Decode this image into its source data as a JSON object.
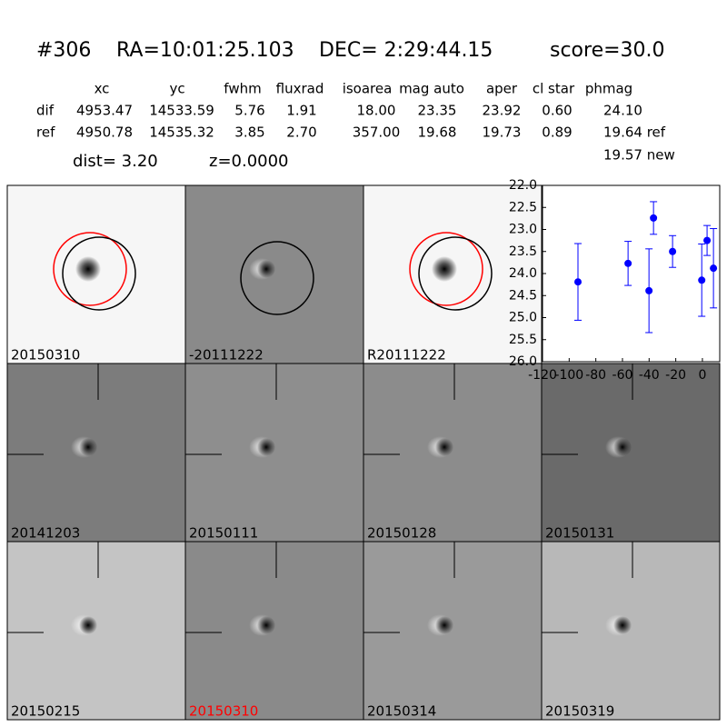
{
  "header": {
    "object": "#306",
    "ra": "RA=10:01:25.103",
    "dec": "DEC= 2:29:44.15",
    "score": "score=30.0"
  },
  "table": {
    "columns": [
      "xc",
      "yc",
      "fwhm",
      "fluxrad",
      "isoarea",
      "mag auto",
      "aper",
      "cl star",
      "phmag"
    ],
    "rows": [
      [
        "dif",
        "4953.47",
        "14533.59",
        "5.76",
        "1.91",
        "18.00",
        "23.35",
        "23.92",
        "0.60",
        "24.10"
      ],
      [
        "ref",
        "4950.78",
        "14535.32",
        "3.85",
        "2.70",
        "357.00",
        "19.68",
        "19.73",
        "0.89",
        "19.64 ref"
      ]
    ],
    "extra": "19.57 new",
    "dist": "dist=  3.20",
    "z": "z=0.0000"
  },
  "stamps": [
    {
      "label": "20150310"
    },
    {
      "label": "-20111222"
    },
    {
      "label": "R20111222"
    },
    {
      "label": "20141203"
    },
    {
      "label": "20150111"
    },
    {
      "label": "20150128"
    },
    {
      "label": "20150131"
    },
    {
      "label": "20150215"
    },
    {
      "label": "20150310",
      "color": "#ff0000"
    },
    {
      "label": "20150314"
    },
    {
      "label": "20150319"
    }
  ],
  "chart_data": {
    "type": "errorbar",
    "x": [
      -93.4,
      -55.8,
      -40.1,
      -36.7,
      -22.4,
      -0.5,
      3.5,
      8.3
    ],
    "series": [
      {
        "color": "#0000ff",
        "values": [
          24.19,
          23.77,
          24.39,
          22.74,
          23.5,
          24.15,
          23.25,
          23.88
        ],
        "errors": [
          0.87,
          0.5,
          0.95,
          0.37,
          0.36,
          0.82,
          0.34,
          0.9
        ]
      }
    ],
    "xlim": [
      -120,
      13
    ],
    "xticks": [
      -120,
      -100,
      -80,
      -60,
      -40,
      -20,
      0
    ],
    "ylim": [
      26,
      22
    ],
    "yticks": [
      {
        "value": 22,
        "label": "22.0"
      },
      {
        "value": 22.5,
        "label": "22.5"
      },
      {
        "value": 23,
        "label": "23.0"
      },
      {
        "value": 23.5,
        "label": "23.5"
      },
      {
        "value": 24,
        "label": "24.0"
      },
      {
        "value": 24.5,
        "label": "24.5"
      },
      {
        "value": 25,
        "label": "25.0"
      },
      {
        "value": 25.5,
        "label": "25.5"
      },
      {
        "value": 26,
        "label": "26.0"
      }
    ]
  }
}
